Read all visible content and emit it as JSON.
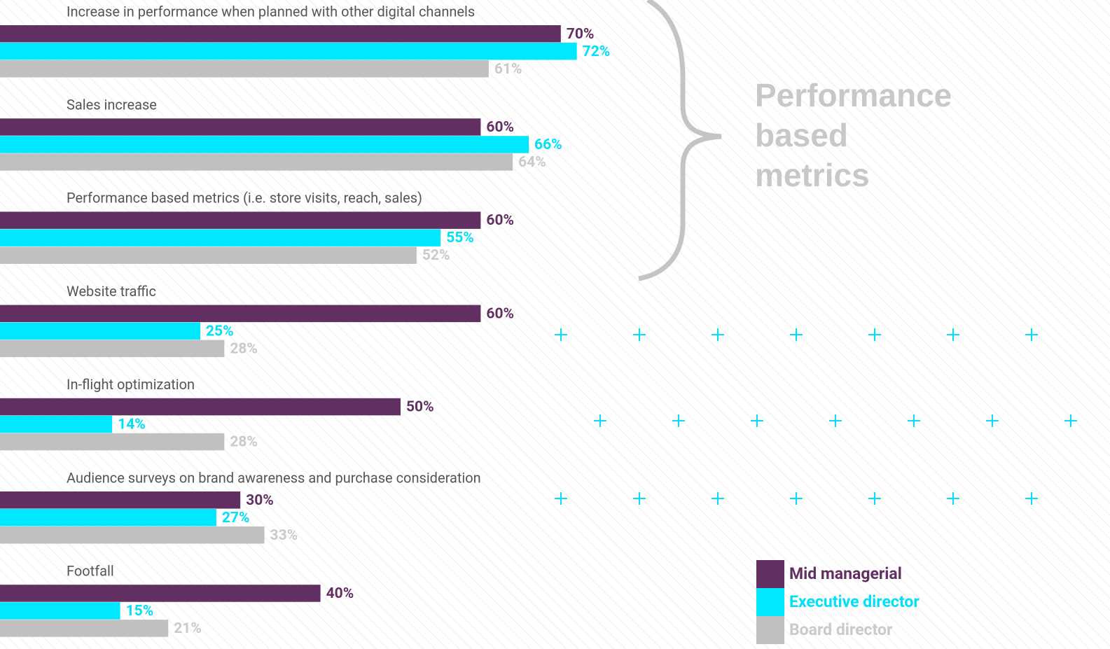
{
  "chart_data": {
    "type": "bar",
    "orientation": "horizontal",
    "categories": [
      "Increase in performance when planned with other digital channels",
      "Sales increase",
      "Performance based metrics (i.e. store visits, reach, sales)",
      "Website traffic",
      "In-flight optimization",
      "Audience surveys on brand awareness and purchase consideration",
      "Footfall"
    ],
    "series": [
      {
        "name": "Mid managerial",
        "color": "#622f63",
        "label_color": "#622f63",
        "values": [
          70,
          60,
          60,
          60,
          50,
          30,
          40
        ],
        "value_labels": [
          "70%",
          "60%",
          "60%",
          "60%",
          "50%",
          "30%",
          "40%"
        ]
      },
      {
        "name": "Executive director",
        "color": "#00e8ff",
        "label_color": "#00e0f8",
        "values": [
          72,
          66,
          55,
          25,
          14,
          27,
          15
        ],
        "value_labels": [
          "72%",
          "66%",
          "55%",
          "25%",
          "14%",
          "27%",
          "15%"
        ]
      },
      {
        "name": "Board director",
        "color": "#c0c0c0",
        "label_color": "#cacaca",
        "values": [
          61,
          64,
          52,
          28,
          28,
          33,
          21
        ],
        "value_labels": [
          "61%",
          "64%",
          "52%",
          "28%",
          "28%",
          "33%",
          "21%"
        ]
      }
    ],
    "annotation": "Performance based metrics"
  }
}
